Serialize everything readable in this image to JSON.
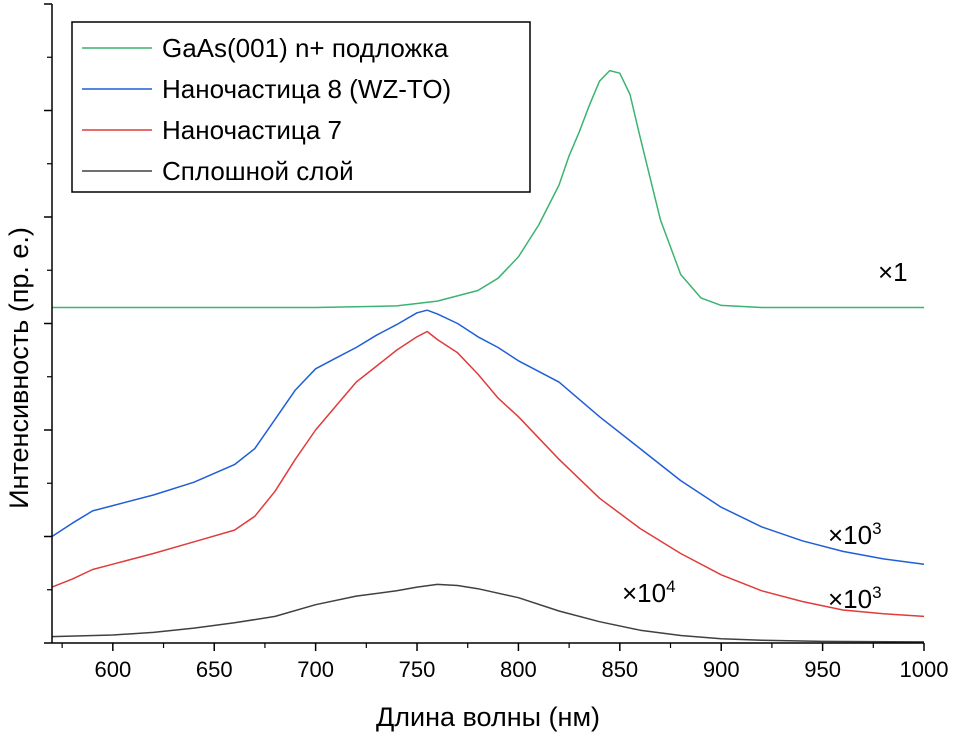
{
  "chart_data": {
    "type": "line",
    "title": "",
    "xlabel": "Длина волны (нм)",
    "ylabel": "Интенсивность (пр. е.)",
    "xlim": [
      570,
      1000
    ],
    "ylim": [
      0,
      12
    ],
    "xticks": [
      600,
      650,
      700,
      750,
      800,
      850,
      900,
      950,
      1000
    ],
    "yticks_labeled": false,
    "grid": false,
    "legend_position": "top-left",
    "series": [
      {
        "name": "GaAs(001) n+ подложка",
        "color": "#3cb371",
        "multiplier": "×1",
        "x": [
          570,
          600,
          650,
          700,
          740,
          760,
          780,
          790,
          800,
          810,
          820,
          825,
          830,
          835,
          840,
          845,
          850,
          855,
          860,
          870,
          880,
          890,
          900,
          920,
          950,
          1000
        ],
        "y": [
          6.3,
          6.3,
          6.3,
          6.3,
          6.33,
          6.42,
          6.62,
          6.85,
          7.25,
          7.85,
          8.6,
          9.15,
          9.6,
          10.1,
          10.55,
          10.75,
          10.7,
          10.3,
          9.5,
          7.95,
          6.92,
          6.48,
          6.34,
          6.3,
          6.3,
          6.3
        ]
      },
      {
        "name": "Наночастица 8 (WZ-TO)",
        "color": "#1f5fd6",
        "multiplier": "×10",
        "multiplier_exp": "3",
        "x": [
          570,
          580,
          590,
          600,
          620,
          640,
          660,
          670,
          680,
          690,
          700,
          710,
          720,
          730,
          740,
          750,
          755,
          760,
          770,
          780,
          790,
          800,
          820,
          840,
          860,
          880,
          900,
          920,
          940,
          960,
          980,
          1000
        ],
        "y": [
          2.0,
          2.25,
          2.48,
          2.58,
          2.78,
          3.02,
          3.35,
          3.65,
          4.2,
          4.75,
          5.15,
          5.35,
          5.55,
          5.78,
          5.98,
          6.2,
          6.25,
          6.18,
          6.0,
          5.75,
          5.55,
          5.3,
          4.9,
          4.25,
          3.65,
          3.05,
          2.55,
          2.18,
          1.92,
          1.72,
          1.58,
          1.48
        ]
      },
      {
        "name": "Наночастица 7",
        "color": "#e03c3c",
        "multiplier": "×10",
        "multiplier_exp": "3",
        "x": [
          570,
          580,
          590,
          600,
          620,
          640,
          660,
          670,
          680,
          690,
          700,
          710,
          720,
          730,
          740,
          750,
          755,
          760,
          770,
          780,
          790,
          800,
          820,
          840,
          860,
          880,
          900,
          920,
          940,
          960,
          980,
          1000
        ],
        "y": [
          1.05,
          1.2,
          1.38,
          1.48,
          1.68,
          1.9,
          2.12,
          2.38,
          2.85,
          3.45,
          4.0,
          4.45,
          4.9,
          5.2,
          5.5,
          5.75,
          5.85,
          5.7,
          5.45,
          5.05,
          4.6,
          4.25,
          3.45,
          2.72,
          2.15,
          1.68,
          1.28,
          0.98,
          0.78,
          0.62,
          0.55,
          0.5
        ]
      },
      {
        "name": "Сплошной слой",
        "color": "#404040",
        "multiplier": "×10",
        "multiplier_exp": "4",
        "x": [
          570,
          600,
          620,
          640,
          660,
          680,
          700,
          720,
          740,
          750,
          760,
          770,
          780,
          800,
          820,
          840,
          860,
          880,
          900,
          920,
          950,
          1000
        ],
        "y": [
          0.12,
          0.15,
          0.2,
          0.28,
          0.38,
          0.5,
          0.72,
          0.88,
          0.98,
          1.05,
          1.1,
          1.08,
          1.02,
          0.85,
          0.6,
          0.4,
          0.24,
          0.14,
          0.08,
          0.05,
          0.03,
          0.02
        ]
      }
    ]
  }
}
